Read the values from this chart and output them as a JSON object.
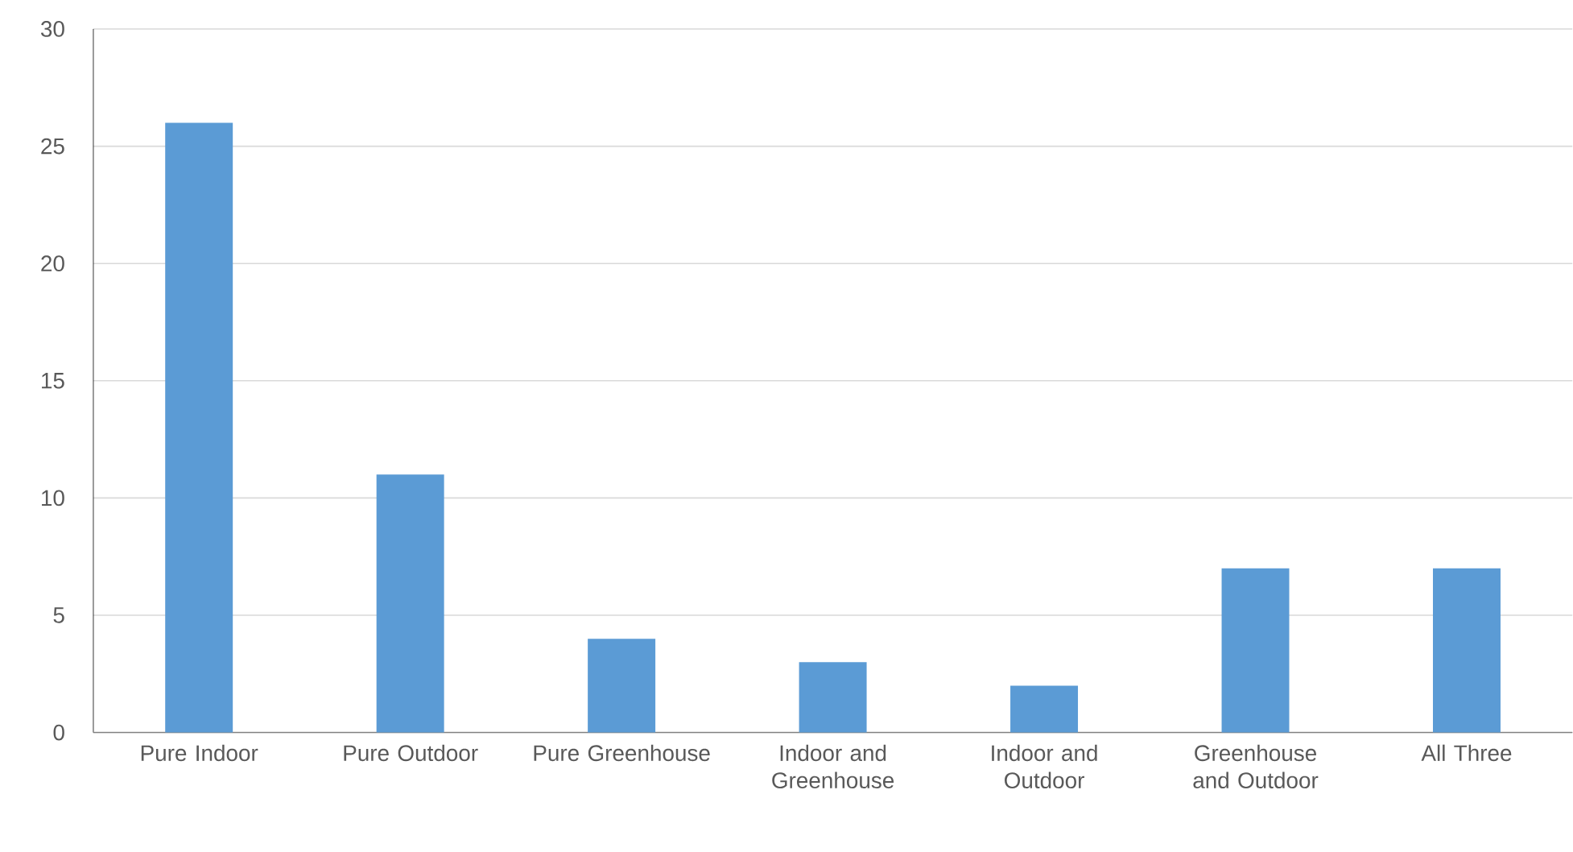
{
  "chart_data": {
    "type": "bar",
    "categories": [
      "Pure Indoor",
      "Pure Outdoor",
      "Pure Greenhouse",
      "Indoor and Greenhouse",
      "Indoor and Outdoor",
      "Greenhouse and Outdoor",
      "All Three"
    ],
    "values": [
      26,
      11,
      4,
      3,
      2,
      7,
      7
    ],
    "color": "#5b9bd5",
    "ylim": [
      0,
      30
    ],
    "yticks": [
      0,
      5,
      10,
      15,
      20,
      25,
      30
    ],
    "grid": "y"
  }
}
